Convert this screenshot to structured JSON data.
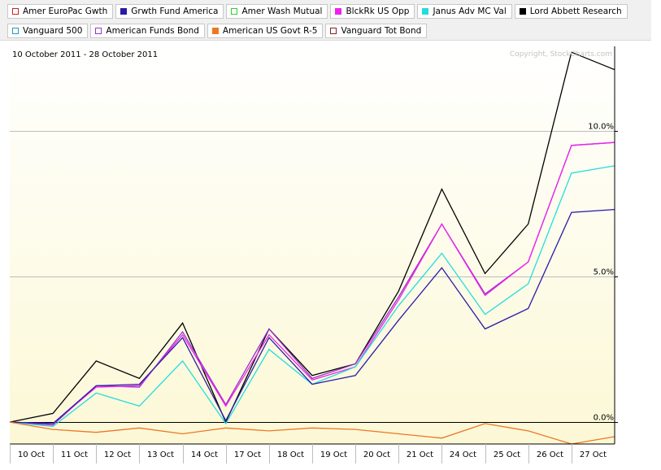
{
  "legend": {
    "row1": [
      {
        "label": "Amer EuroPac Gwth",
        "color": "#cc2222",
        "filled": false
      },
      {
        "label": "Grwth Fund America",
        "color": "#2a1aa6",
        "filled": true
      },
      {
        "label": "Amer Wash Mutual",
        "color": "#33cc33",
        "filled": false
      },
      {
        "label": "BlckRk US Opp",
        "color": "#ee22ee",
        "filled": true
      },
      {
        "label": "Janus Adv MC Val",
        "color": "#22dddd",
        "filled": true
      },
      {
        "label": "Lord Abbett Research",
        "color": "#000000",
        "filled": true
      }
    ],
    "row2": [
      {
        "label": "Vanguard 500",
        "color": "#2299bb",
        "filled": false
      },
      {
        "label": "American Funds Bond",
        "color": "#9933cc",
        "filled": false
      },
      {
        "label": "American US Govt R-5",
        "color": "#ee7722",
        "filled": true
      },
      {
        "label": "Vanguard Tot Bond",
        "color": "#882222",
        "filled": false
      }
    ]
  },
  "chart_data": {
    "type": "line",
    "date_range": "10 October 2011 - 28 October 2011",
    "copyright": "Copyright, StockCharts.com",
    "x": [
      "10 Oct",
      "11 Oct",
      "12 Oct",
      "13 Oct",
      "14 Oct",
      "17 Oct",
      "18 Oct",
      "19 Oct",
      "20 Oct",
      "21 Oct",
      "24 Oct",
      "25 Oct",
      "26 Oct",
      "27 Oct",
      "28 Oct"
    ],
    "x_ticks": [
      "10 Oct",
      "11 Oct",
      "12 Oct",
      "13 Oct",
      "14 Oct",
      "17 Oct",
      "18 Oct",
      "19 Oct",
      "20 Oct",
      "21 Oct",
      "24 Oct",
      "25 Oct",
      "26 Oct",
      "27 Oct"
    ],
    "y_ticks": [
      {
        "value": 0,
        "label": "0.0%"
      },
      {
        "value": 5,
        "label": "5.0%"
      },
      {
        "value": 10,
        "label": "10.0%"
      }
    ],
    "ylim": [
      -0.75,
      12.9
    ],
    "grid": true,
    "series": [
      {
        "name": "Lord Abbett Research",
        "color": "#000000",
        "values": [
          0,
          0.3,
          2.1,
          1.5,
          3.4,
          0.0,
          3.2,
          1.6,
          2.0,
          4.5,
          8.0,
          5.1,
          6.8,
          12.7,
          12.1
        ]
      },
      {
        "name": "American Funds Bond",
        "color": "#9933cc",
        "values": [
          0,
          -0.1,
          1.25,
          1.2,
          3.1,
          0.6,
          3.2,
          1.5,
          2.0,
          4.3,
          6.8,
          4.4,
          5.5,
          9.5,
          9.6
        ]
      },
      {
        "name": "BlckRk US Opp",
        "color": "#ee22ee",
        "values": [
          0,
          -0.05,
          1.2,
          1.25,
          3.0,
          0.55,
          3.0,
          1.45,
          1.9,
          4.2,
          6.8,
          4.35,
          5.5,
          9.5,
          9.6
        ]
      },
      {
        "name": "Janus Adv MC Val",
        "color": "#22dddd",
        "values": [
          0,
          -0.15,
          1.0,
          0.55,
          2.1,
          -0.05,
          2.5,
          1.3,
          1.9,
          4.0,
          5.8,
          3.7,
          4.75,
          8.55,
          8.8
        ]
      },
      {
        "name": "Grwth Fund America",
        "color": "#2a1aa6",
        "values": [
          0,
          -0.05,
          1.25,
          1.3,
          2.9,
          0.05,
          2.9,
          1.3,
          1.6,
          3.5,
          5.3,
          3.2,
          3.9,
          7.2,
          7.3
        ]
      },
      {
        "name": "American US Govt R-5",
        "color": "#ee7722",
        "values": [
          0,
          -0.25,
          -0.35,
          -0.2,
          -0.4,
          -0.2,
          -0.3,
          -0.2,
          -0.25,
          -0.4,
          -0.55,
          -0.05,
          -0.3,
          -0.75,
          -0.5
        ]
      }
    ]
  }
}
